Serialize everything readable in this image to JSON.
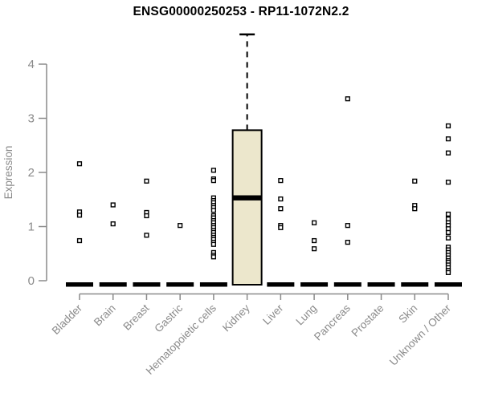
{
  "title": "ENSG00000250253 - RP11-1072N2.2",
  "colors": {
    "background": "#ffffff",
    "axis_gray": "#8a8a8a",
    "title_black": "#000000",
    "data_black": "#000000",
    "box_fill": "#ece7cc",
    "point_fill": "#ffffff"
  },
  "chart_data": {
    "type": "boxplot",
    "title": "ENSG00000250253 - RP11-1072N2.2",
    "xlabel": "",
    "ylabel": "Expression",
    "ylim": [
      0,
      4.6
    ],
    "yticks": [
      0,
      1,
      2,
      3,
      4
    ],
    "grid": false,
    "legend": "none",
    "categories": [
      "Bladder",
      "Brain",
      "Breast",
      "Gastric",
      "Hematopoietic cells",
      "Kidney",
      "Liver",
      "Lung",
      "Pancreas",
      "Prostate",
      "Skin",
      "Unknown / Other"
    ],
    "groups": [
      {
        "category": "Bladder",
        "box": {
          "q1": 0,
          "median": 0,
          "q3": 0,
          "collapsed": true
        },
        "points": [
          2.16,
          1.27,
          1.21,
          0.74
        ]
      },
      {
        "category": "Brain",
        "box": {
          "q1": 0,
          "median": 0,
          "q3": 0,
          "collapsed": true
        },
        "points": [
          1.4,
          1.05
        ]
      },
      {
        "category": "Breast",
        "box": {
          "q1": 0,
          "median": 0,
          "q3": 0,
          "collapsed": true
        },
        "points": [
          1.84,
          1.26,
          1.2,
          0.84
        ]
      },
      {
        "category": "Gastric",
        "box": {
          "q1": 0,
          "median": 0,
          "q3": 0,
          "collapsed": true
        },
        "points": [
          1.02
        ]
      },
      {
        "category": "Hematopoietic cells",
        "box": {
          "q1": 0,
          "median": 0,
          "q3": 0,
          "collapsed": true
        },
        "points": [
          2.04,
          1.88,
          1.85,
          1.53,
          1.48,
          1.44,
          1.39,
          1.35,
          1.3,
          1.2,
          1.16,
          1.11,
          1.07,
          1.02,
          0.98,
          0.93,
          0.89,
          0.84,
          0.8,
          0.76,
          0.71,
          0.67,
          0.52,
          0.47,
          0.44
        ]
      },
      {
        "category": "Kidney",
        "box": {
          "q1": 0,
          "median": 1.53,
          "q3": 2.78,
          "whisker_high": 4.55,
          "collapsed": false
        },
        "points": []
      },
      {
        "category": "Liver",
        "box": {
          "q1": 0,
          "median": 0,
          "q3": 0,
          "collapsed": true
        },
        "points": [
          1.85,
          1.51,
          1.33,
          1.02,
          0.98
        ]
      },
      {
        "category": "Lung",
        "box": {
          "q1": 0,
          "median": 0,
          "q3": 0,
          "collapsed": true
        },
        "points": [
          1.07,
          0.74,
          0.59
        ]
      },
      {
        "category": "Pancreas",
        "box": {
          "q1": 0,
          "median": 0,
          "q3": 0,
          "collapsed": true
        },
        "points": [
          3.36,
          1.02,
          0.71
        ]
      },
      {
        "category": "Prostate",
        "box": {
          "q1": 0,
          "median": 0,
          "q3": 0,
          "collapsed": true
        },
        "points": []
      },
      {
        "category": "Skin",
        "box": {
          "q1": 0,
          "median": 0,
          "q3": 0,
          "collapsed": true
        },
        "points": [
          1.84,
          1.39,
          1.33
        ]
      },
      {
        "category": "Unknown / Other",
        "box": {
          "q1": 0,
          "median": 0,
          "q3": 0,
          "collapsed": true
        },
        "points": [
          2.86,
          2.62,
          2.36,
          1.82,
          1.23,
          1.14,
          1.07,
          1.02,
          0.96,
          0.89,
          0.79,
          0.62,
          0.57,
          0.52,
          0.47,
          0.42,
          0.37,
          0.34,
          0.29,
          0.24,
          0.19,
          0.15
        ]
      }
    ]
  }
}
